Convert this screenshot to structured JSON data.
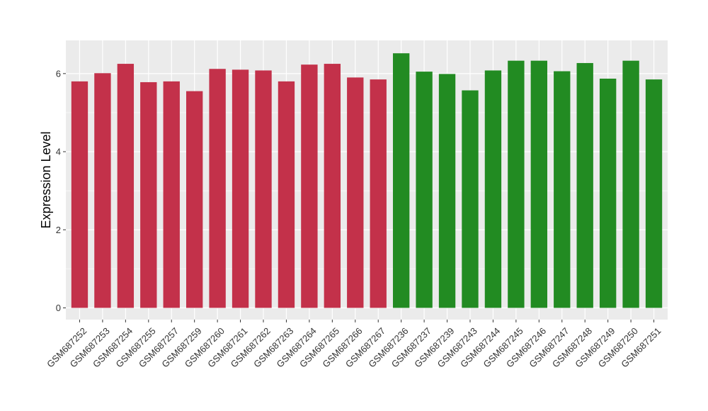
{
  "chart_data": {
    "type": "bar",
    "ylabel": "Expression Level",
    "xlabel": "",
    "title": "",
    "ylim": [
      -0.3,
      6.85
    ],
    "yticks": [
      0,
      2,
      4,
      6
    ],
    "grid": true,
    "legend": "none",
    "colors": {
      "group_a": "#c3314a",
      "group_b": "#228b22",
      "panel": "#ebebeb",
      "gridline": "#ffffff"
    },
    "categories": [
      "GSM687252",
      "GSM687253",
      "GSM687254",
      "GSM687255",
      "GSM687257",
      "GSM687259",
      "GSM687260",
      "GSM687261",
      "GSM687262",
      "GSM687263",
      "GSM687264",
      "GSM687265",
      "GSM687266",
      "GSM687267",
      "GSM687236",
      "GSM687237",
      "GSM687239",
      "GSM687243",
      "GSM687244",
      "GSM687245",
      "GSM687246",
      "GSM687247",
      "GSM687248",
      "GSM687249",
      "GSM687250",
      "GSM687251"
    ],
    "values": [
      5.8,
      6.01,
      6.25,
      5.78,
      5.8,
      5.55,
      6.12,
      6.1,
      6.08,
      5.8,
      6.23,
      6.25,
      5.9,
      5.85,
      6.52,
      6.05,
      5.99,
      5.57,
      6.08,
      6.33,
      6.33,
      6.06,
      6.27,
      5.87,
      6.33,
      5.85
    ],
    "groups": [
      "a",
      "a",
      "a",
      "a",
      "a",
      "a",
      "a",
      "a",
      "a",
      "a",
      "a",
      "a",
      "a",
      "a",
      "b",
      "b",
      "b",
      "b",
      "b",
      "b",
      "b",
      "b",
      "b",
      "b",
      "b",
      "b"
    ]
  }
}
